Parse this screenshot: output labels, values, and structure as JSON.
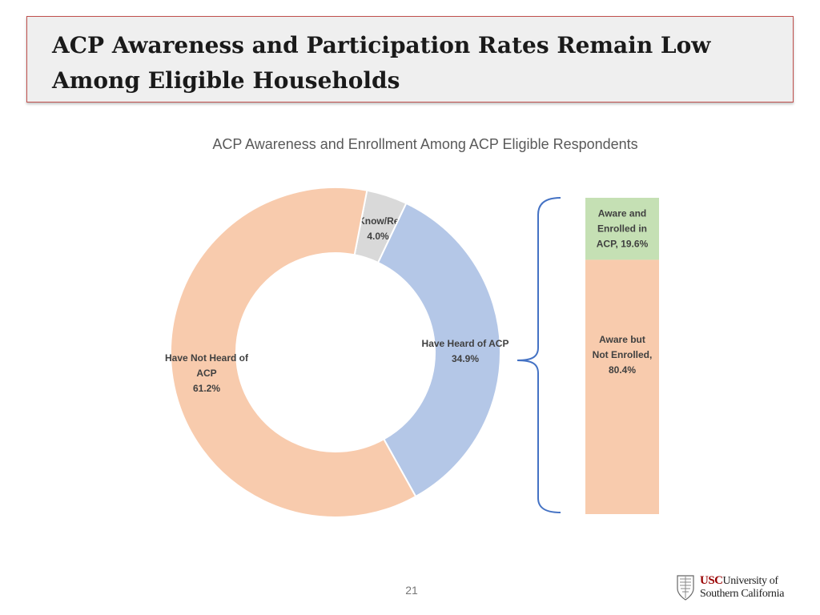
{
  "slide": {
    "title": "ACP Awareness and Participation Rates Remain Low Among Eligible Households",
    "page_number": "21",
    "logo": {
      "name": "USC University of Southern California",
      "usc": "USC",
      "university_of": "University of",
      "southern_california": "Southern California"
    }
  },
  "chart_data": [
    {
      "type": "donut",
      "title": "ACP Awareness and Enrollment Among ACP Eligible Respondents",
      "slices": [
        {
          "name": "Don't Know/Refused",
          "label_lines": [
            "Don't Know/Refused",
            "4.0%"
          ],
          "value": 4.0,
          "color": "#d9d9d9"
        },
        {
          "name": "Have Heard of ACP",
          "label_lines": [
            "Have Heard of ACP",
            "34.9%"
          ],
          "value": 34.9,
          "color": "#b4c7e7"
        },
        {
          "name": "Have Not Heard of ACP",
          "label_lines": [
            "Have Not Heard of",
            "ACP",
            "61.2%"
          ],
          "value": 61.2,
          "color": "#f8cbad"
        }
      ]
    },
    {
      "type": "bar",
      "stacked": true,
      "orientation": "vertical",
      "segments": [
        {
          "name": "Aware and Enrolled in ACP",
          "label_lines": [
            "Aware and",
            "Enrolled in",
            "ACP, 19.6%"
          ],
          "value": 19.6,
          "color": "#c5e0b4"
        },
        {
          "name": "Aware but Not Enrolled",
          "label_lines": [
            "Aware but",
            "Not Enrolled,",
            "80.4%"
          ],
          "value": 80.4,
          "color": "#f8cbad"
        }
      ],
      "bracket_color": "#4472c4"
    }
  ]
}
